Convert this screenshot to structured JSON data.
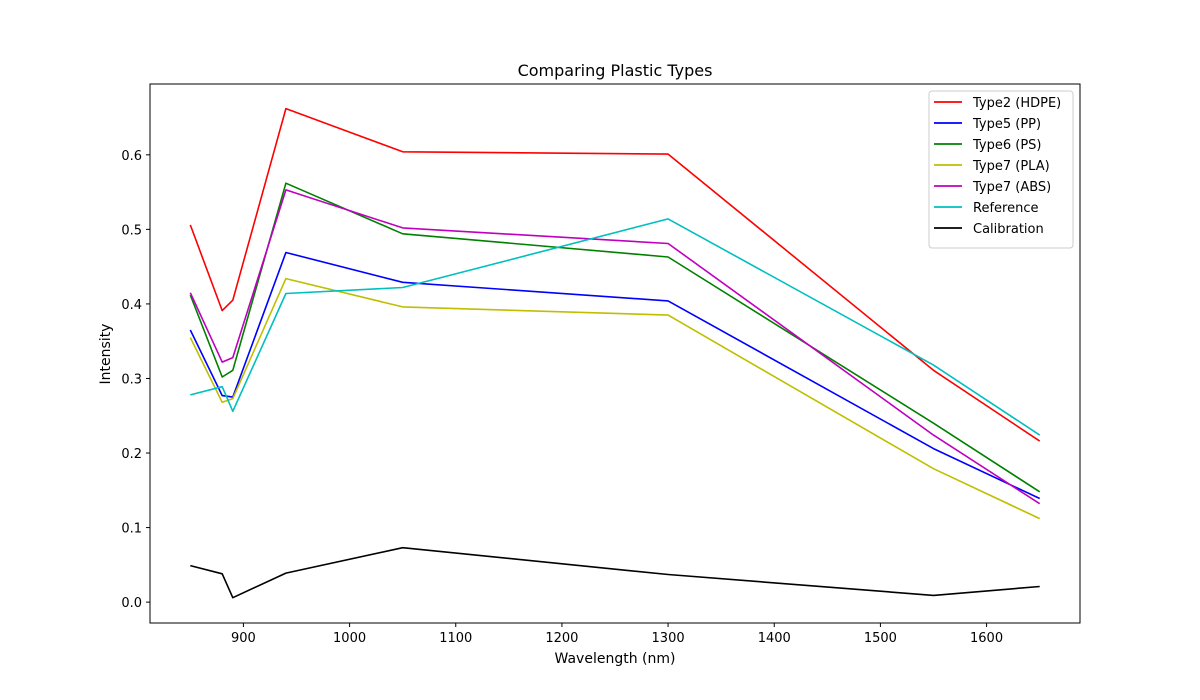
{
  "chart_data": {
    "type": "line",
    "title": "Comparing Plastic Types",
    "xlabel": "Wavelength (nm)",
    "ylabel": "Intensity",
    "xlim": [
      812,
      1688
    ],
    "ylim": [
      -0.028,
      0.695
    ],
    "xticks": [
      900,
      1000,
      1100,
      1200,
      1300,
      1400,
      1500,
      1600
    ],
    "xtick_labels": [
      "900",
      "1000",
      "1100",
      "1200",
      "1300",
      "1400",
      "1500",
      "1600"
    ],
    "yticks": [
      0.0,
      0.1,
      0.2,
      0.3,
      0.4,
      0.5,
      0.6
    ],
    "ytick_labels": [
      "0.0",
      "0.1",
      "0.2",
      "0.3",
      "0.4",
      "0.5",
      "0.6"
    ],
    "grid": false,
    "legend_position": "top-right",
    "x": [
      850,
      880,
      890,
      940,
      1050,
      1300,
      1550,
      1650
    ],
    "series": [
      {
        "name": "Type2 (HDPE)",
        "color": "#ff0000",
        "values": [
          0.506,
          0.391,
          0.405,
          0.662,
          0.604,
          0.601,
          0.311,
          0.216
        ]
      },
      {
        "name": "Type5 (PP)",
        "color": "#0000ff",
        "values": [
          0.365,
          0.277,
          0.275,
          0.469,
          0.429,
          0.404,
          0.206,
          0.139
        ]
      },
      {
        "name": "Type6 (PS)",
        "color": "#008000",
        "values": [
          0.412,
          0.302,
          0.311,
          0.562,
          0.494,
          0.463,
          0.24,
          0.148
        ]
      },
      {
        "name": "Type7 (PLA)",
        "color": "#bfbf00",
        "values": [
          0.355,
          0.268,
          0.273,
          0.434,
          0.396,
          0.385,
          0.179,
          0.112
        ]
      },
      {
        "name": "Type7 (ABS)",
        "color": "#bf00bf",
        "values": [
          0.415,
          0.322,
          0.328,
          0.553,
          0.502,
          0.481,
          0.224,
          0.132
        ]
      },
      {
        "name": "Reference",
        "color": "#00bfbf",
        "values": [
          0.278,
          0.289,
          0.256,
          0.414,
          0.422,
          0.514,
          0.318,
          0.224
        ]
      },
      {
        "name": "Calibration",
        "color": "#000000",
        "values": [
          0.049,
          0.038,
          0.006,
          0.039,
          0.073,
          0.037,
          0.009,
          0.021
        ]
      }
    ]
  }
}
